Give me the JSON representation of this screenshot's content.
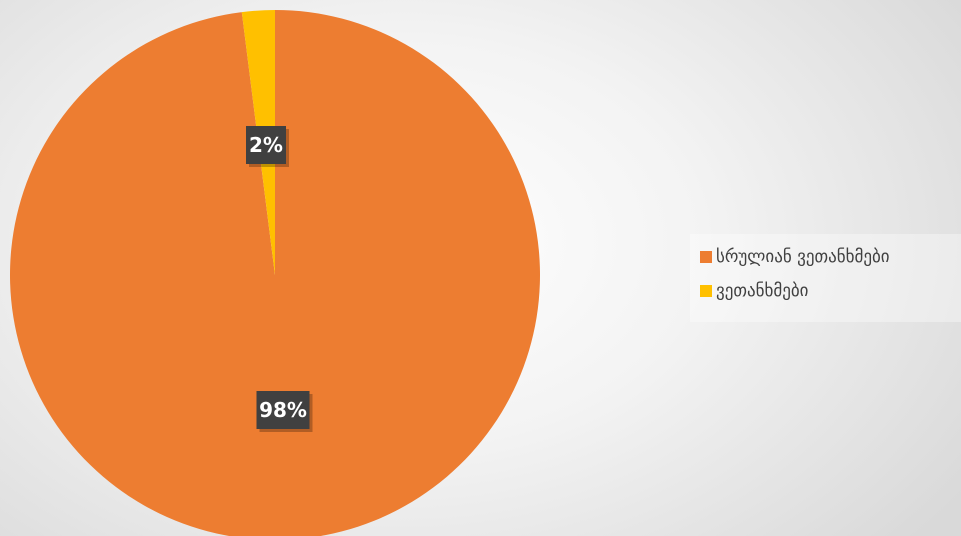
{
  "chart_data": {
    "type": "pie",
    "categories": [
      "სრულიან ვეთანხმები",
      "ვეთანხმები"
    ],
    "values": [
      98,
      2
    ],
    "data_labels": [
      "98%",
      "2%"
    ],
    "colors": [
      "#ED7D31",
      "#FFC000"
    ],
    "legend": "right"
  }
}
